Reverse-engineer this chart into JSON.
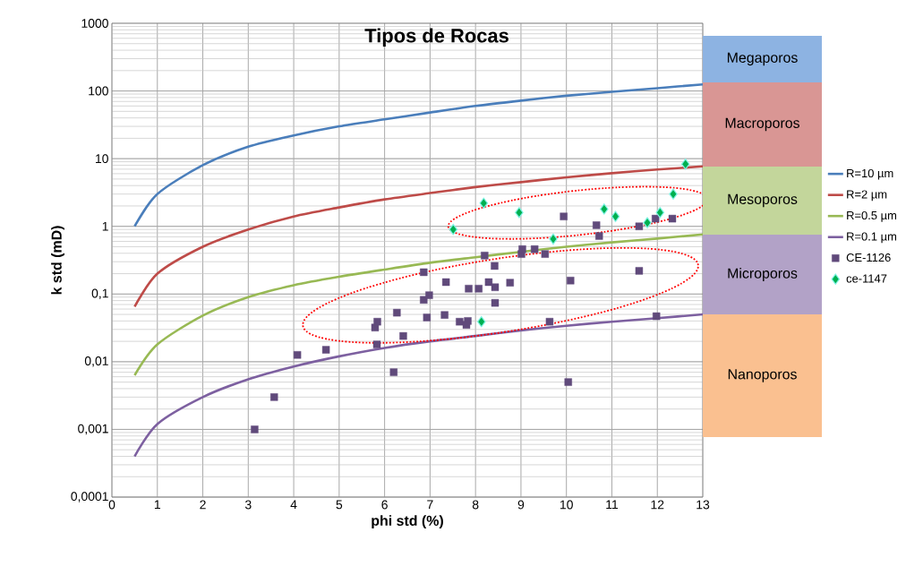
{
  "chart_data": {
    "type": "line",
    "title": "Tipos de Rocas",
    "xlabel": "phi std (%)",
    "ylabel": "k std (mD)",
    "log": "y",
    "grid": true,
    "legend": "right",
    "xlim": [
      0,
      13
    ],
    "xticks": [
      0,
      1,
      2,
      3,
      4,
      5,
      6,
      7,
      8,
      9,
      10,
      11,
      12,
      13
    ],
    "ylim": [
      0.0001,
      1000
    ],
    "yticks": [
      {
        "value": 0.0001,
        "label": "0,0001"
      },
      {
        "value": 0.001,
        "label": "0,001"
      },
      {
        "value": 0.01,
        "label": "0,01"
      },
      {
        "value": 0.1,
        "label": "0,1"
      },
      1,
      10,
      100,
      1000
    ],
    "annotations": [
      "Megaporos",
      "Macroporos",
      "Mesoporos",
      "Microporos",
      "Nanoporos"
    ],
    "series": [
      {
        "name": "R=10 µm",
        "type": "line",
        "color": "#4a7ebb",
        "x": [
          0.5,
          1,
          2,
          3,
          4,
          5,
          6,
          7,
          8,
          9,
          10,
          11,
          12,
          13
        ],
        "values": [
          1,
          3,
          8,
          15,
          22,
          30,
          38,
          48,
          60,
          72,
          85,
          97,
          110,
          125
        ]
      },
      {
        "name": "R=2 µm",
        "type": "line",
        "color": "#be4b48",
        "x": [
          0.5,
          1,
          2,
          3,
          4,
          5,
          6,
          7,
          8,
          9,
          10,
          11,
          12,
          13
        ],
        "values": [
          0.065,
          0.2,
          0.5,
          0.9,
          1.4,
          1.9,
          2.5,
          3.1,
          3.8,
          4.5,
          5.3,
          6.1,
          6.9,
          7.7
        ]
      },
      {
        "name": "R=0.5 µm",
        "type": "line",
        "color": "#98b954",
        "x": [
          0.5,
          1,
          2,
          3,
          4,
          5,
          6,
          7,
          8,
          9,
          10,
          11,
          12,
          13
        ],
        "values": [
          0.0063,
          0.018,
          0.048,
          0.09,
          0.135,
          0.18,
          0.23,
          0.29,
          0.35,
          0.42,
          0.5,
          0.58,
          0.66,
          0.76
        ]
      },
      {
        "name": "R=0.1 µm",
        "type": "line",
        "color": "#7d60a0",
        "x": [
          0.5,
          1,
          2,
          3,
          4,
          5,
          6,
          7,
          8,
          9,
          10,
          11,
          12,
          13
        ],
        "values": [
          0.0004,
          0.0012,
          0.003,
          0.0055,
          0.0085,
          0.012,
          0.016,
          0.02,
          0.024,
          0.029,
          0.034,
          0.039,
          0.044,
          0.05
        ]
      },
      {
        "name": "CE-1126",
        "type": "scatter",
        "marker": "square",
        "color": "#604a7b",
        "x": [
          3.14,
          3.57,
          4.08,
          4.71,
          5.83,
          5.79,
          5.84,
          6.2,
          6.27,
          6.41,
          6.86,
          6.86,
          6.98,
          6.93,
          7.32,
          7.35,
          7.65,
          7.83,
          7.8,
          7.85,
          8.07,
          8.2,
          8.29,
          8.42,
          8.43,
          8.43,
          8.76,
          9.01,
          9.03,
          9.3,
          9.53,
          9.63,
          9.94,
          10.09,
          10.04,
          10.66,
          10.72,
          11.6,
          11.6,
          11.96,
          11.98,
          12.33
        ],
        "values": [
          0.001,
          0.003,
          0.0126,
          0.015,
          0.018,
          0.032,
          0.039,
          0.007,
          0.053,
          0.024,
          0.21,
          0.082,
          0.096,
          0.045,
          0.049,
          0.15,
          0.039,
          0.04,
          0.035,
          0.12,
          0.12,
          0.37,
          0.15,
          0.26,
          0.126,
          0.074,
          0.147,
          0.39,
          0.46,
          0.46,
          0.39,
          0.039,
          1.4,
          0.158,
          0.005,
          1.04,
          0.72,
          1.0,
          0.22,
          1.3,
          0.047,
          1.3
        ]
      },
      {
        "name": "ce-1147",
        "type": "scatter",
        "marker": "diamond",
        "color": "#00b050",
        "x": [
          7.51,
          8.18,
          8.96,
          8.13,
          9.71,
          10.83,
          11.08,
          11.78,
          12.06,
          12.35,
          12.62
        ],
        "values": [
          0.9,
          2.2,
          1.6,
          0.039,
          0.65,
          1.8,
          1.4,
          1.13,
          1.6,
          3.0,
          8.3
        ]
      }
    ]
  }
}
